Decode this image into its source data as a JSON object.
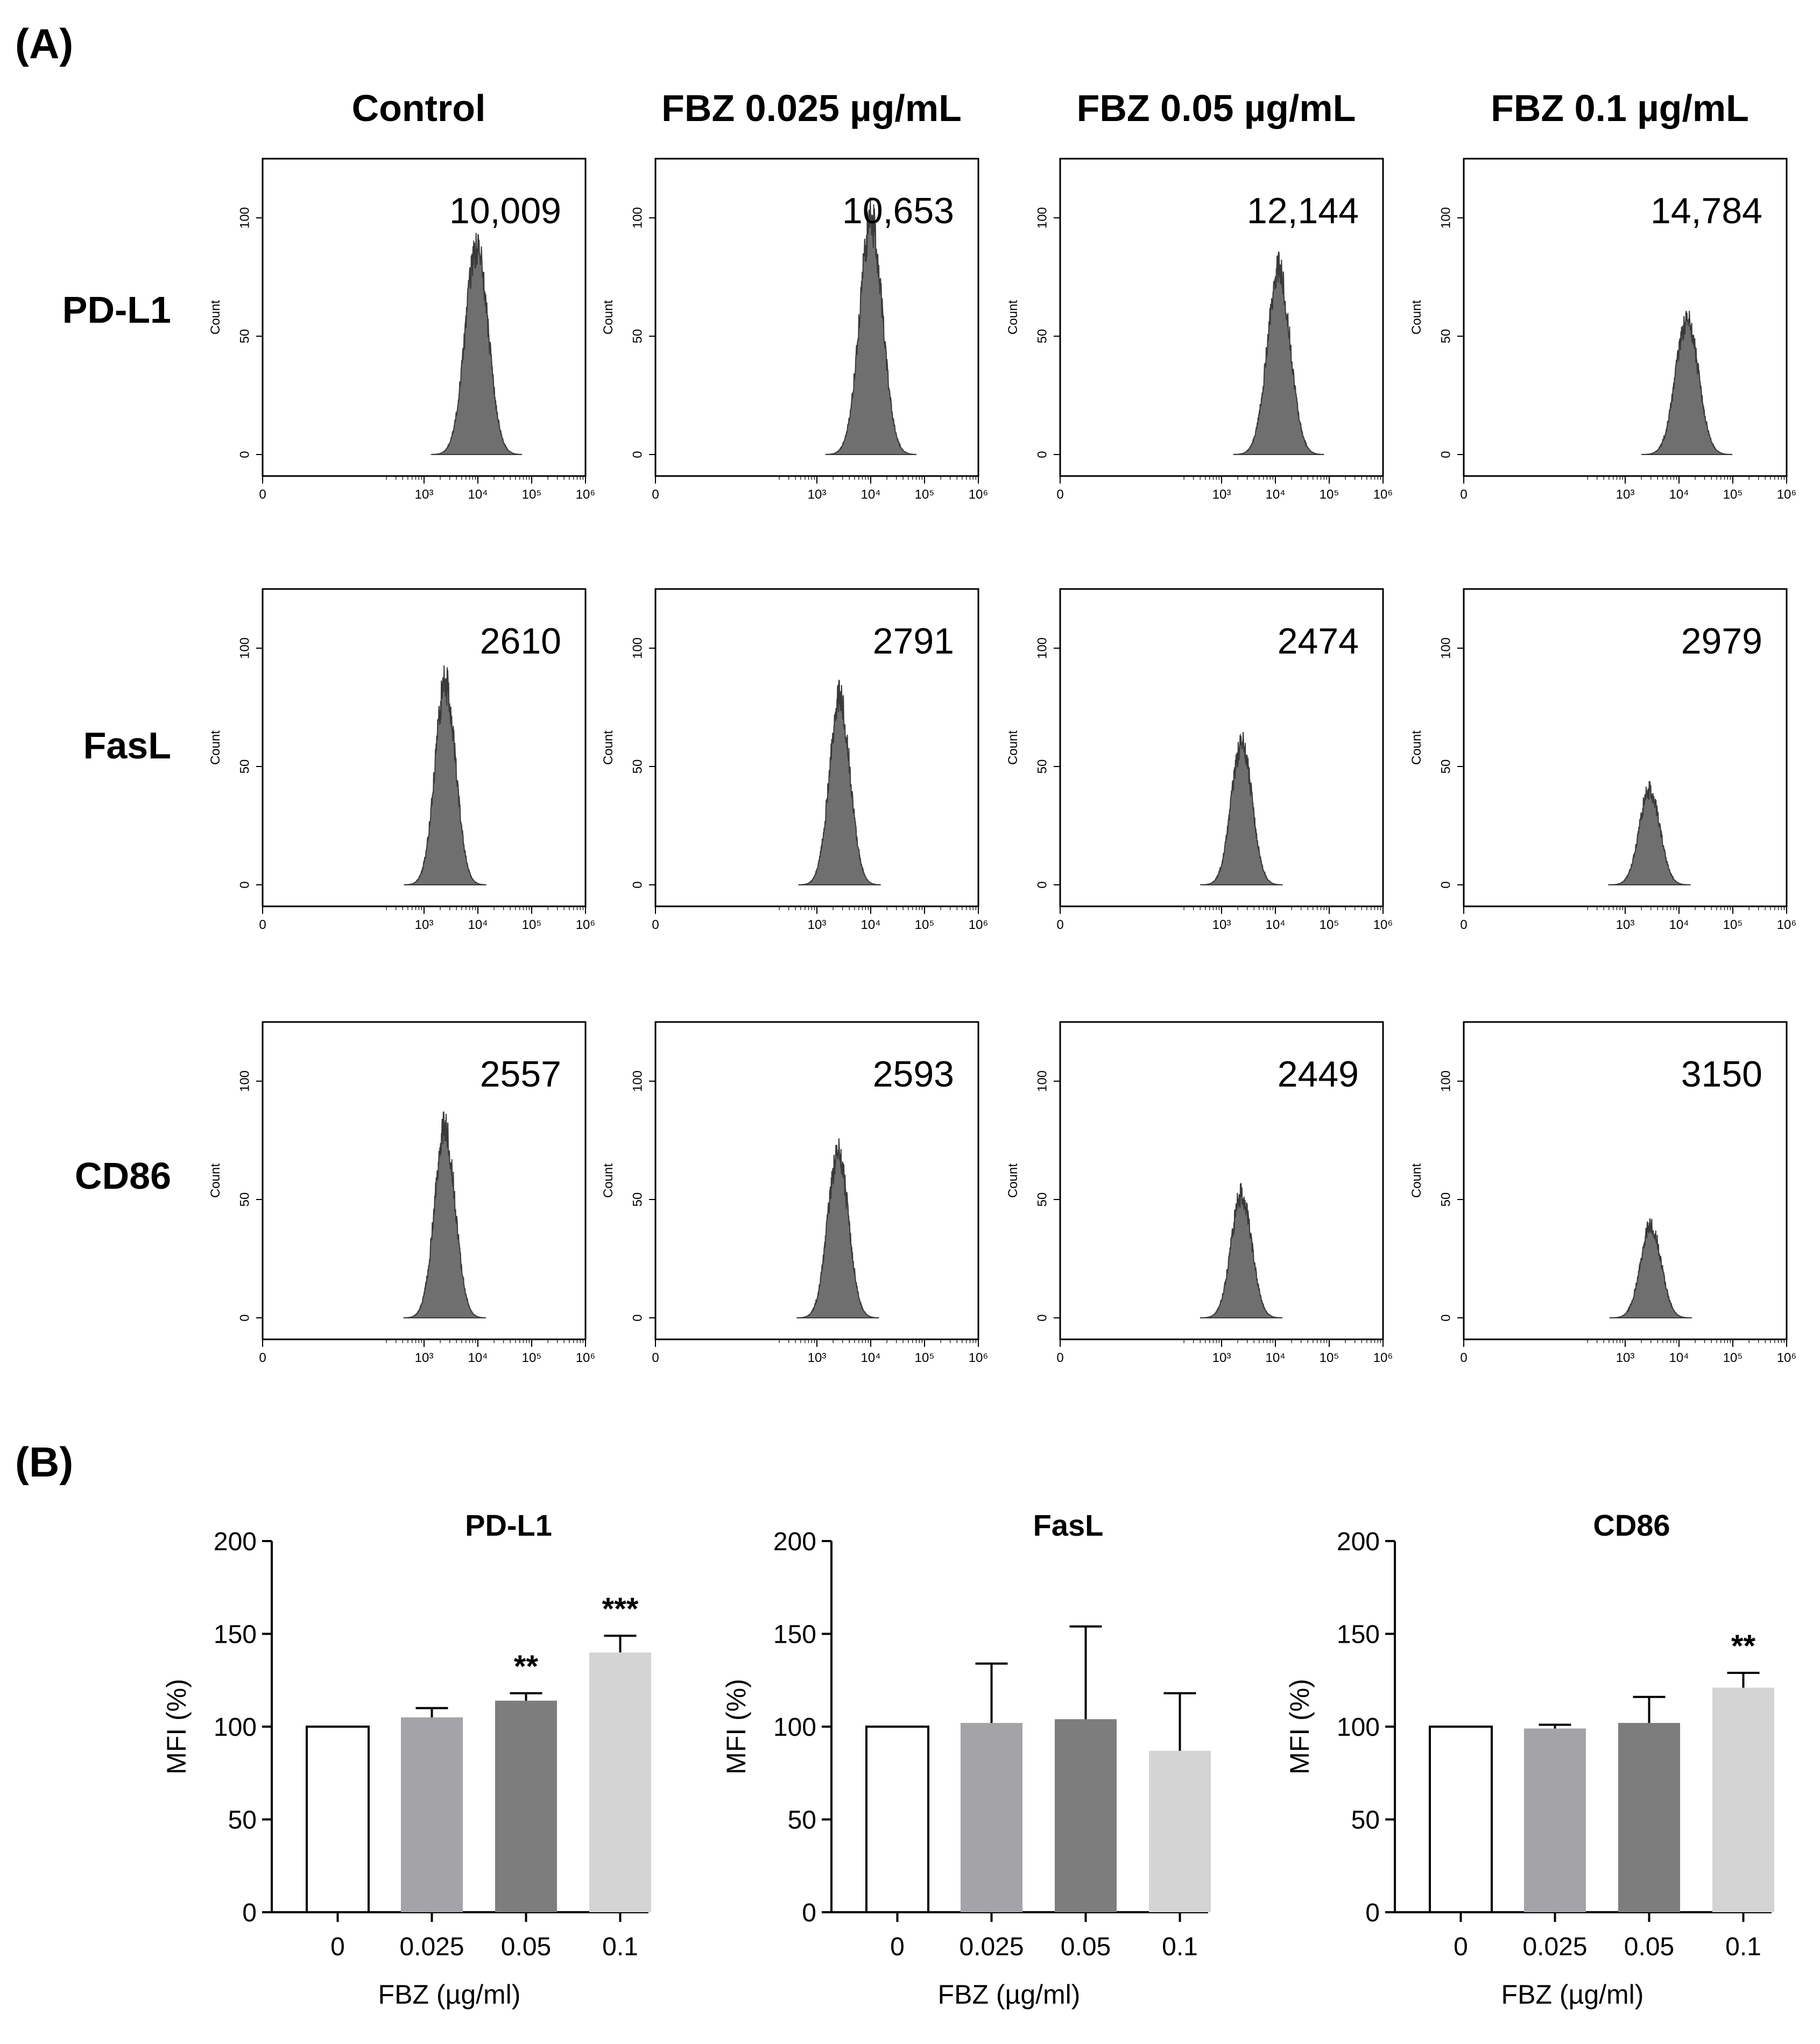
{
  "panels": {
    "a": "(A)",
    "b": "(B)"
  },
  "flow": {
    "columns": [
      "Control",
      "FBZ 0.025 µg/mL",
      "FBZ 0.05 µg/mL",
      "FBZ 0.1 µg/mL"
    ],
    "rows": [
      "PD-L1",
      "FasL",
      "CD86"
    ],
    "count_label": "Count",
    "x_ticks": [
      "0",
      "10³",
      "10⁴",
      "10⁵",
      "10⁶"
    ],
    "y_ticks": [
      [
        "0",
        "50",
        "100"
      ],
      [
        "0",
        "50",
        "100"
      ],
      [
        "0",
        "50",
        "100"
      ]
    ],
    "mfi": [
      [
        "10,009",
        "10,653",
        "12,144",
        "14,784"
      ],
      [
        "2610",
        "2791",
        "2474",
        "2979"
      ],
      [
        "2557",
        "2593",
        "2449",
        "3150"
      ]
    ]
  },
  "colors": {
    "hist_fill": "#6f6f6f",
    "hist_line": "#3a3a3a",
    "bars": [
      "#ffffff",
      "#a3a3a8",
      "#7d7d7d",
      "#d4d4d4"
    ],
    "axis": "#000000"
  },
  "chart_data": [
    {
      "type": "bar",
      "title": "PD-L1",
      "xlabel": "FBZ (µg/ml)",
      "ylabel": "MFI (%)",
      "categories": [
        "0",
        "0.025",
        "0.05",
        "0.1"
      ],
      "values": [
        100,
        105,
        114,
        140
      ],
      "errors": [
        0,
        5,
        4,
        9
      ],
      "significance": [
        "",
        "",
        "**",
        "***"
      ],
      "ylim": [
        0,
        200
      ],
      "yticks": [
        "0",
        "50",
        "100",
        "150",
        "200"
      ]
    },
    {
      "type": "bar",
      "title": "FasL",
      "xlabel": "FBZ (µg/ml)",
      "ylabel": "MFI (%)",
      "categories": [
        "0",
        "0.025",
        "0.05",
        "0.1"
      ],
      "values": [
        100,
        102,
        104,
        87
      ],
      "errors": [
        0,
        32,
        50,
        31
      ],
      "significance": [
        "",
        "",
        "",
        ""
      ],
      "ylim": [
        0,
        200
      ],
      "yticks": [
        "0",
        "50",
        "100",
        "150",
        "200"
      ]
    },
    {
      "type": "bar",
      "title": "CD86",
      "xlabel": "FBZ (µg/ml)",
      "ylabel": "MFI (%)",
      "categories": [
        "0",
        "0.025",
        "0.05",
        "0.1"
      ],
      "values": [
        100,
        99,
        102,
        121
      ],
      "errors": [
        0,
        2,
        14,
        8
      ],
      "significance": [
        "",
        "",
        "",
        "**"
      ],
      "ylim": [
        0,
        200
      ],
      "yticks": [
        "0",
        "50",
        "100",
        "150",
        "200"
      ]
    }
  ]
}
